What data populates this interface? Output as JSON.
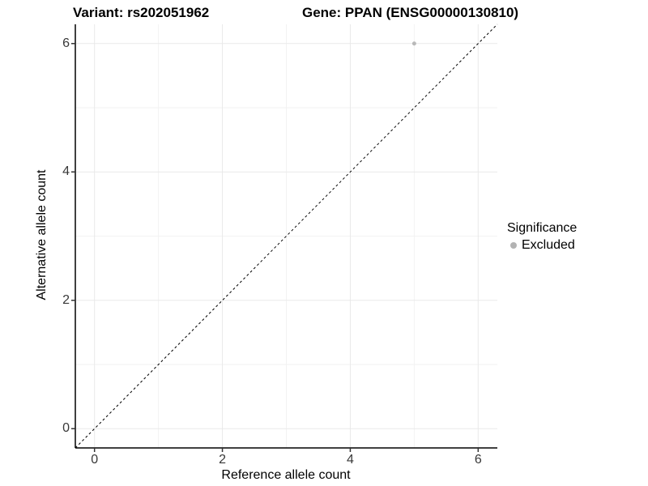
{
  "chart_data": {
    "type": "scatter",
    "title_left": "Variant: rs202051962",
    "title_right": "Gene: PPAN (ENSG00000130810)",
    "xlabel": "Reference allele count",
    "ylabel": "Alternative allele count",
    "xlim": [
      -0.3,
      6.3
    ],
    "ylim": [
      -0.3,
      6.3
    ],
    "xticks": [
      0,
      2,
      4,
      6
    ],
    "yticks": [
      0,
      2,
      4,
      6
    ],
    "grid": {
      "major": [
        0,
        2,
        4,
        6
      ],
      "minor": [
        1,
        3,
        5
      ]
    },
    "reference_line": {
      "type": "identity y=x",
      "style": "dashed",
      "color": "#000000"
    },
    "series": [
      {
        "name": "Excluded",
        "color": "#b9b9b9",
        "points": [
          {
            "x": 5,
            "y": 6
          }
        ]
      }
    ],
    "legend": {
      "title": "Significance",
      "position": "right",
      "entries": [
        {
          "label": "Excluded",
          "color": "#b3b3b3"
        }
      ]
    }
  },
  "colors": {
    "background": "#ffffff",
    "grid_major": "#e9e9e9",
    "grid_minor": "#f2f2f2",
    "axis_line": "#000000",
    "tick_mark": "#333333",
    "tick_label": "#383838"
  }
}
